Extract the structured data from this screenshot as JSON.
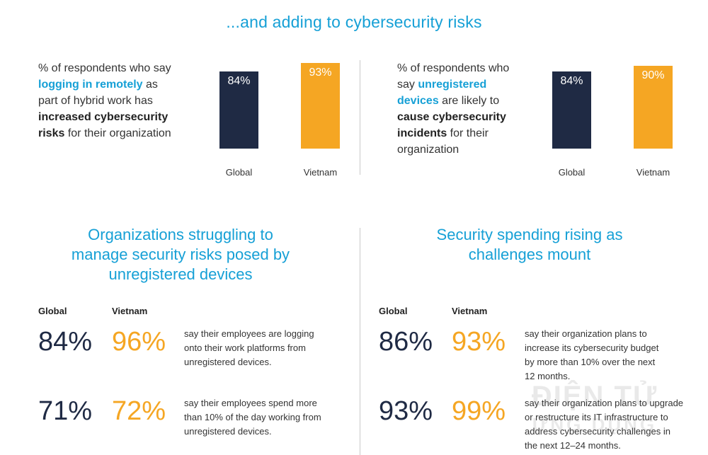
{
  "header": {
    "title": "...and adding to cybersecurity risks"
  },
  "colors": {
    "navy": "#1f2a44",
    "orange": "#f5a623",
    "cyan": "#16a0d6"
  },
  "chart_data": [
    {
      "type": "bar",
      "description_parts": [
        {
          "text": "% of respondents who say ",
          "style": "normal"
        },
        {
          "text": "logging in remotely",
          "style": "highlight"
        },
        {
          "text": " as part of hybrid work has ",
          "style": "normal"
        },
        {
          "text": "increased cybersecurity risks",
          "style": "bold"
        },
        {
          "text": " for their organization",
          "style": "normal"
        }
      ],
      "categories": [
        "Global",
        "Vietnam"
      ],
      "values": [
        84,
        93
      ],
      "labels": [
        "84%",
        "93%"
      ],
      "ylim": [
        0,
        100
      ]
    },
    {
      "type": "bar",
      "description_parts": [
        {
          "text": "% of respondents who say ",
          "style": "normal"
        },
        {
          "text": "unregistered devices",
          "style": "highlight"
        },
        {
          "text": " are likely to ",
          "style": "normal"
        },
        {
          "text": "cause cybersecurity incidents",
          "style": "bold"
        },
        {
          "text": " for their organization",
          "style": "normal"
        }
      ],
      "categories": [
        "Global",
        "Vietnam"
      ],
      "values": [
        84,
        90
      ],
      "labels": [
        "84%",
        "90%"
      ],
      "ylim": [
        0,
        100
      ]
    }
  ],
  "sections": [
    {
      "title_lines": [
        "Organizations struggling to",
        "manage security risks posed by",
        "unregistered devices"
      ],
      "col_global": "Global",
      "col_vietnam": "Vietnam",
      "rows": [
        {
          "global": "84%",
          "vietnam": "96%",
          "text_lines": [
            "say their employees are logging",
            "onto their work platforms from",
            "unregistered devices."
          ]
        },
        {
          "global": "71%",
          "vietnam": "72%",
          "text_lines": [
            "say their employees spend more",
            "than 10% of the day working from",
            "unregistered devices."
          ]
        }
      ]
    },
    {
      "title_lines": [
        "Security spending rising as",
        "challenges mount"
      ],
      "col_global": "Global",
      "col_vietnam": "Vietnam",
      "rows": [
        {
          "global": "86%",
          "vietnam": "93%",
          "text_lines": [
            "say their organization plans to",
            "increase its cybersecurity budget",
            "by more than 10% over the next",
            "12 months."
          ]
        },
        {
          "global": "93%",
          "vietnam": "99%",
          "text_lines": [
            "say their organization plans to upgrade",
            "or restructure its IT infrastructure to",
            "address cybersecurity challenges in",
            "the next 12–24 months."
          ]
        }
      ]
    }
  ],
  "watermark": {
    "line1": "ĐIỆN TỬ",
    "line2": "ỨNG DỤNG"
  }
}
